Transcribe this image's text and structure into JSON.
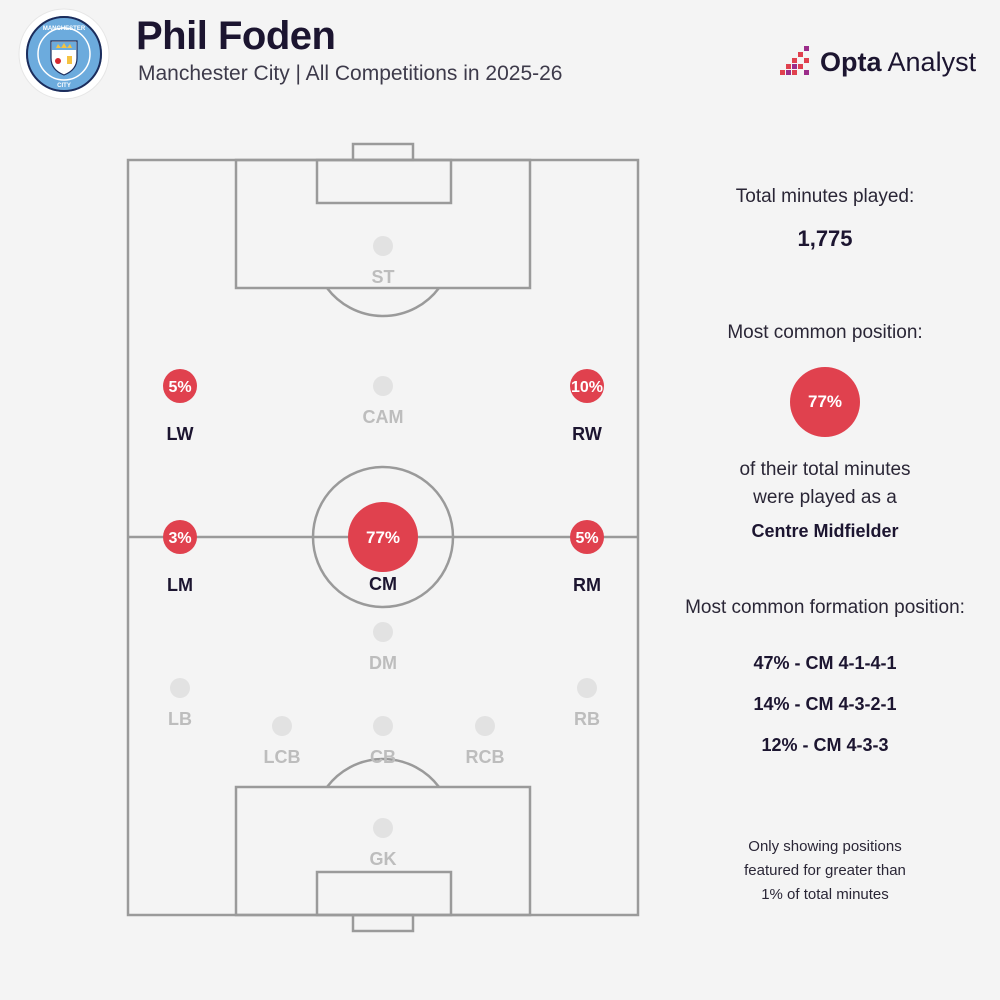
{
  "header": {
    "title": "Phil Foden",
    "subtitle": "Manchester City | All Competitions in 2025-26",
    "brand_bold": "Opta",
    "brand_light": " Analyst",
    "crest_top_text": "MANCHESTER",
    "crest_bottom_text": "CITY"
  },
  "colors": {
    "highlight": "#e0414e",
    "inactive_dot": "#e2e2e2",
    "pitch_line": "#9a9a9a",
    "active_label": "#1c1530",
    "inactive_label": "#bdbdbd"
  },
  "chart_data": {
    "type": "pitch-position-map",
    "unit": "% of total minutes",
    "positions": [
      {
        "label": "ST",
        "value": null
      },
      {
        "label": "LW",
        "value": 5
      },
      {
        "label": "CAM",
        "value": null
      },
      {
        "label": "RW",
        "value": 10
      },
      {
        "label": "LM",
        "value": 3
      },
      {
        "label": "CM",
        "value": 77
      },
      {
        "label": "RM",
        "value": 5
      },
      {
        "label": "DM",
        "value": null
      },
      {
        "label": "LB",
        "value": null
      },
      {
        "label": "RB",
        "value": null
      },
      {
        "label": "LCB",
        "value": null
      },
      {
        "label": "CB",
        "value": null
      },
      {
        "label": "RCB",
        "value": null
      },
      {
        "label": "GK",
        "value": null
      }
    ]
  },
  "sidebar": {
    "minutes_label": "Total minutes played:",
    "minutes_value": "1,775",
    "position_label": "Most common position:",
    "position_pct": "77%",
    "position_text_1": "of their total minutes",
    "position_text_2": "were played as a",
    "position_name": "Centre Midfielder",
    "formation_label": "Most common formation position:",
    "formations": [
      "47% - CM 4-1-4-1",
      "14% - CM 4-3-2-1",
      "12% - CM 4-3-3"
    ],
    "note_lines": [
      "Only showing positions",
      "featured for greater than",
      "1% of total minutes"
    ]
  }
}
